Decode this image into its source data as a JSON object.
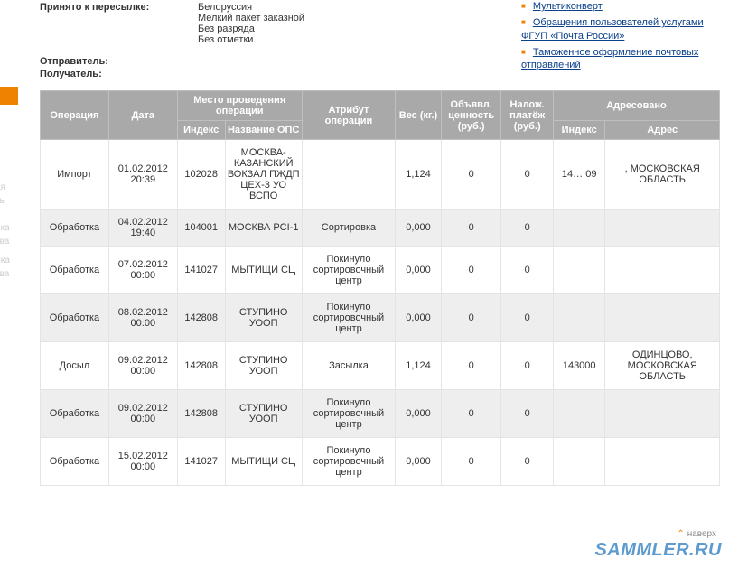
{
  "shipping": {
    "accepted_label": "Принято к пересылке:",
    "accepted_lines": [
      "Белоруссия",
      "Мелкий пакет заказной",
      "Без разряда",
      "Без отметки"
    ],
    "sender_label": "Отправитель:",
    "receiver_label": "Получатель:"
  },
  "sidebar_links": [
    "Мультиконверт",
    "Обращения пользователей услугами ФГУП «Почта России»",
    "Таможенное оформление почтовых отправлений"
  ],
  "headers": {
    "op": "Операция",
    "date": "Дата",
    "place": "Место проведения операции",
    "idx": "Индекс",
    "ops_name": "Название ОПС",
    "attr": "Атрибут операции",
    "weight": "Вес (кг.)",
    "decl_val": "Объявл. ценность (руб.)",
    "cod": "Налож. платёж (руб.)",
    "addressed": "Адресовано",
    "addr": "Адрес"
  },
  "rows": [
    {
      "op": "Импорт",
      "date": "01.02.2012 20:39",
      "idx1": "102028",
      "ops": "МОСКВА-КАЗАНСКИЙ ВОКЗАЛ ПЖДП ЦЕХ-3 УО ВСПО",
      "attr": "",
      "wt": "1,124",
      "val": "0",
      "cod": "0",
      "idx2": "14… 09",
      "addr": ", МОСКОВСКАЯ ОБЛАСТЬ"
    },
    {
      "op": "Обработка",
      "date": "04.02.2012 19:40",
      "idx1": "104001",
      "ops": "МОСКВА PCI-1",
      "attr": "Сортировка",
      "wt": "0,000",
      "val": "0",
      "cod": "0",
      "idx2": "",
      "addr": ""
    },
    {
      "op": "Обработка",
      "date": "07.02.2012 00:00",
      "idx1": "141027",
      "ops": "МЫТИЩИ СЦ",
      "attr": "Покинуло сортировочный центр",
      "wt": "0,000",
      "val": "0",
      "cod": "0",
      "idx2": "",
      "addr": ""
    },
    {
      "op": "Обработка",
      "date": "08.02.2012 00:00",
      "idx1": "142808",
      "ops": "СТУПИНО УООП",
      "attr": "Покинуло сортировочный центр",
      "wt": "0,000",
      "val": "0",
      "cod": "0",
      "idx2": "",
      "addr": ""
    },
    {
      "op": "Досыл",
      "date": "09.02.2012 00:00",
      "idx1": "142808",
      "ops": "СТУПИНО УООП",
      "attr": "Засылка",
      "wt": "1,124",
      "val": "0",
      "cod": "0",
      "idx2": "143000",
      "addr": "ОДИНЦОВО, МОСКОВСКАЯ ОБЛАСТЬ"
    },
    {
      "op": "Обработка",
      "date": "09.02.2012 00:00",
      "idx1": "142808",
      "ops": "СТУПИНО УООП",
      "attr": "Покинуло сортировочный центр",
      "wt": "0,000",
      "val": "0",
      "cod": "0",
      "idx2": "",
      "addr": ""
    },
    {
      "op": "Обработка",
      "date": "15.02.2012 00:00",
      "idx1": "141027",
      "ops": "МЫТИЩИ СЦ",
      "attr": "Покинуло сортировочный центр",
      "wt": "0,000",
      "val": "0",
      "cod": "0",
      "idx2": "",
      "addr": ""
    }
  ],
  "watermark": "SAMMLER.RU",
  "navtop": "наверх",
  "ghost": [
    "ая",
    "ть",
    "-",
    "йка",
    "тва",
    "лка",
    "тва"
  ]
}
